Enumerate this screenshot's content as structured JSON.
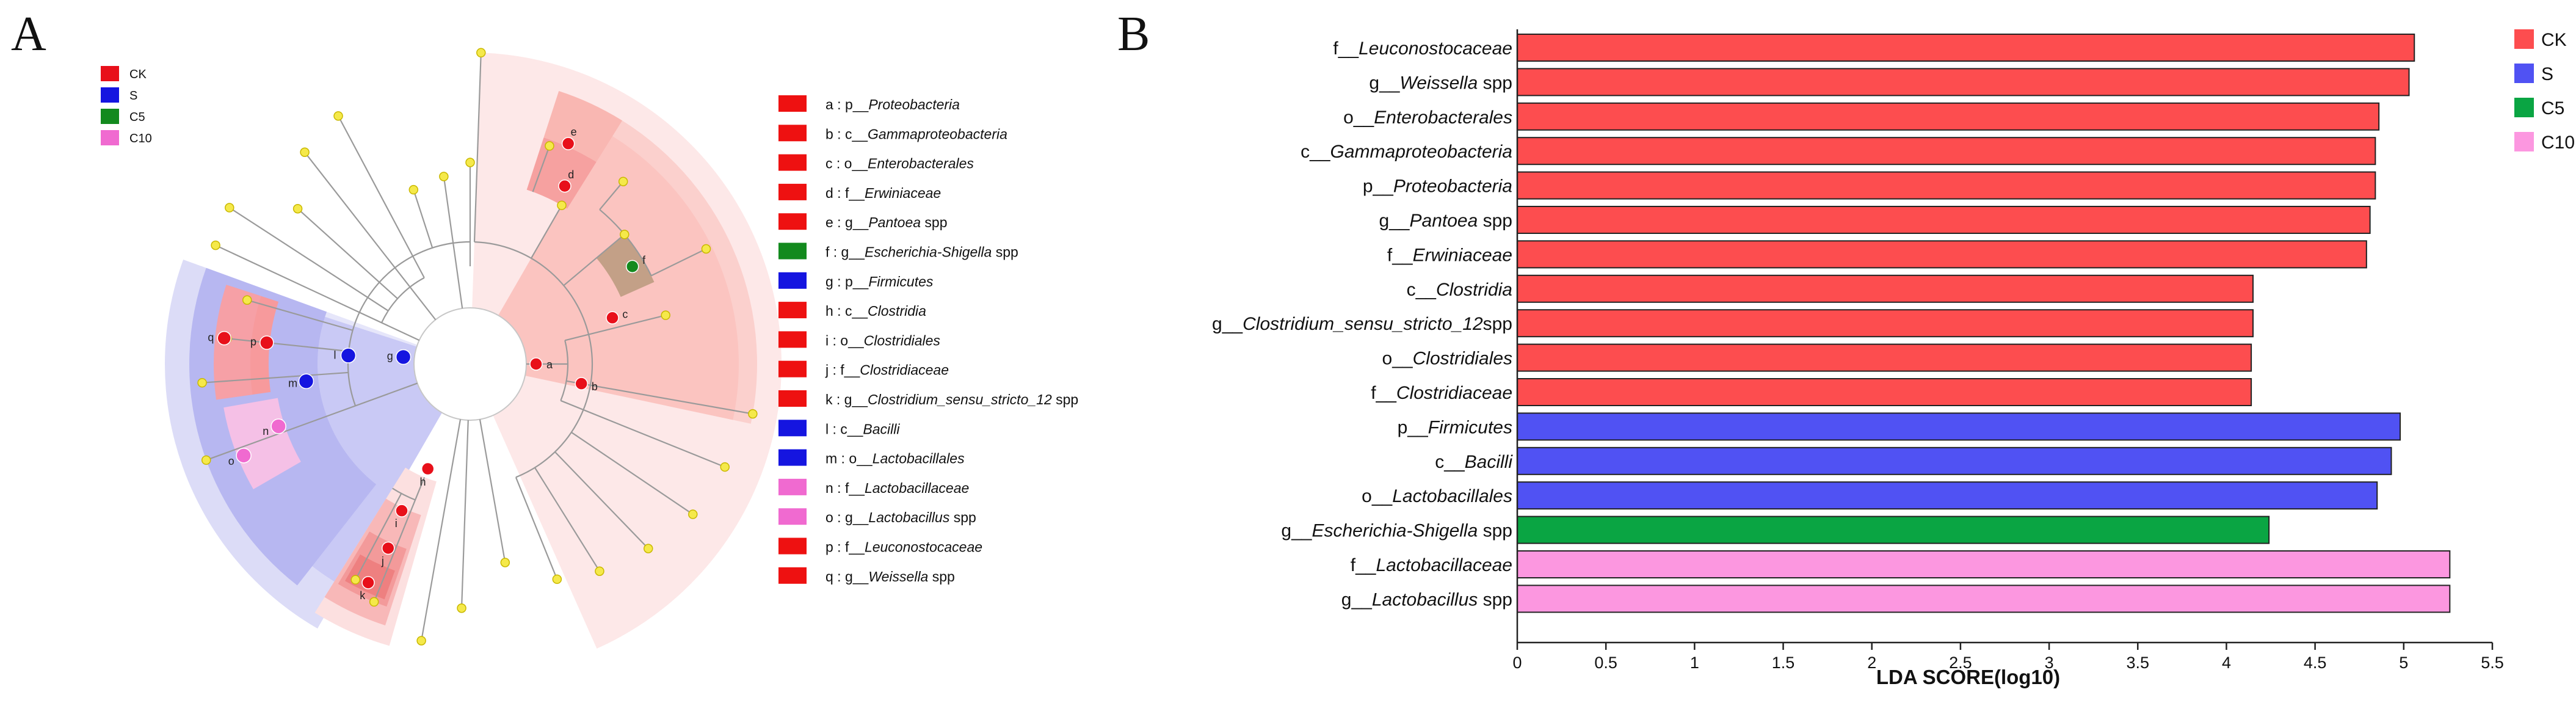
{
  "panel_a": {
    "letter": "A",
    "legend": [
      {
        "label": "CK",
        "color": "#e8101a"
      },
      {
        "label": "S",
        "color": "#1515e0"
      },
      {
        "label": "C5",
        "color": "#138a1e"
      },
      {
        "label": "C10",
        "color": "#f06ad0"
      }
    ],
    "key": [
      {
        "prefix": "a : p__",
        "name": "Proteobacteria",
        "suffix": "",
        "color": "#ee1111"
      },
      {
        "prefix": "b : c__",
        "name": "Gammaproteobacteria",
        "suffix": "",
        "color": "#ee1111"
      },
      {
        "prefix": "c : o__",
        "name": "Enterobacterales",
        "suffix": "",
        "color": "#ee1111"
      },
      {
        "prefix": "d : f__",
        "name": "Erwiniaceae",
        "suffix": "",
        "color": "#ee1111"
      },
      {
        "prefix": "e : g__",
        "name": "Pantoea",
        "suffix": " spp",
        "color": "#ee1111"
      },
      {
        "prefix": "f : g__",
        "name": "Escherichia-Shigella",
        "suffix": " spp",
        "color": "#138a1e"
      },
      {
        "prefix": "g : p__",
        "name": "Firmicutes",
        "suffix": "",
        "color": "#1515e0"
      },
      {
        "prefix": "h : c__",
        "name": "Clostridia",
        "suffix": "",
        "color": "#ee1111"
      },
      {
        "prefix": "i : o__",
        "name": "Clostridiales",
        "suffix": "",
        "color": "#ee1111"
      },
      {
        "prefix": "j : f__",
        "name": "Clostridiaceae",
        "suffix": "",
        "color": "#ee1111"
      },
      {
        "prefix": "k : g__",
        "name": "Clostridium_sensu_stricto_12",
        "suffix": " spp",
        "color": "#ee1111"
      },
      {
        "prefix": "l : c__",
        "name": "Bacilli",
        "suffix": "",
        "color": "#1515e0"
      },
      {
        "prefix": "m : o__",
        "name": "Lactobacillales",
        "suffix": "",
        "color": "#1515e0"
      },
      {
        "prefix": "n : f__",
        "name": "Lactobacillaceae",
        "suffix": "",
        "color": "#f06ad0"
      },
      {
        "prefix": "o : g__",
        "name": "Lactobacillus",
        "suffix": "  spp",
        "color": "#f06ad0"
      },
      {
        "prefix": "p : f__",
        "name": "Leuconostocaceae",
        "suffix": "",
        "color": "#ee1111"
      },
      {
        "prefix": "q : g__",
        "name": "Weissella",
        "suffix": "  spp",
        "color": "#ee1111"
      }
    ],
    "node_labels": [
      "a",
      "b",
      "c",
      "d",
      "e",
      "f",
      "g",
      "h",
      "i",
      "j",
      "k",
      "l",
      "m",
      "n",
      "o",
      "p",
      "q"
    ]
  },
  "panel_b": {
    "letter": "B"
  },
  "chart_data": {
    "type": "bar",
    "orientation": "horizontal",
    "xlabel": "LDA SCORE(log10)",
    "xlim": [
      0,
      5.5
    ],
    "xticks": [
      "0",
      "0.5",
      "1",
      "1.5",
      "2",
      "2.5",
      "3",
      "3.5",
      "4",
      "4.5",
      "5",
      "5.5"
    ],
    "groups": [
      {
        "name": "CK",
        "color": "#fd4d4f"
      },
      {
        "name": "S",
        "color": "#5052f3"
      },
      {
        "name": "C5",
        "color": "#0aa543"
      },
      {
        "name": "C10",
        "color": "#fc97e0"
      }
    ],
    "bars": [
      {
        "prefix": "f__",
        "name": "Leuconostocaceae",
        "suffix": "",
        "value": 5.06,
        "group": "CK"
      },
      {
        "prefix": "g__",
        "name": "Weissella",
        "suffix": " spp",
        "value": 5.03,
        "group": "CK"
      },
      {
        "prefix": "o__",
        "name": "Enterobacterales",
        "suffix": "",
        "value": 4.86,
        "group": "CK"
      },
      {
        "prefix": "c__",
        "name": "Gammaproteobacteria",
        "suffix": "",
        "value": 4.84,
        "group": "CK"
      },
      {
        "prefix": "p__",
        "name": "Proteobacteria",
        "suffix": "",
        "value": 4.84,
        "group": "CK"
      },
      {
        "prefix": "g__",
        "name": "Pantoea",
        "suffix": " spp",
        "value": 4.81,
        "group": "CK"
      },
      {
        "prefix": "f__",
        "name": "Erwiniaceae",
        "suffix": "",
        "value": 4.79,
        "group": "CK"
      },
      {
        "prefix": "c__",
        "name": "Clostridia",
        "suffix": "",
        "value": 4.15,
        "group": "CK"
      },
      {
        "prefix": "g__",
        "name": "Clostridium_sensu_stricto_12",
        "suffix": "spp",
        "value": 4.15,
        "group": "CK"
      },
      {
        "prefix": "o__",
        "name": "Clostridiales",
        "suffix": "",
        "value": 4.14,
        "group": "CK"
      },
      {
        "prefix": "f__",
        "name": "Clostridiaceae",
        "suffix": "",
        "value": 4.14,
        "group": "CK"
      },
      {
        "prefix": "p__",
        "name": "Firmicutes",
        "suffix": "",
        "value": 4.98,
        "group": "S"
      },
      {
        "prefix": "c__",
        "name": "Bacilli",
        "suffix": "",
        "value": 4.93,
        "group": "S"
      },
      {
        "prefix": "o__",
        "name": "Lactobacillales",
        "suffix": "",
        "value": 4.85,
        "group": "S"
      },
      {
        "prefix": "g__",
        "name": "Escherichia-Shigella",
        "suffix": " spp",
        "value": 4.24,
        "group": "C5"
      },
      {
        "prefix": "f__",
        "name": "Lactobacillaceae",
        "suffix": "",
        "value": 5.26,
        "group": "C10"
      },
      {
        "prefix": "g__",
        "name": "Lactobacillus",
        "suffix": " spp",
        "value": 5.26,
        "group": "C10"
      }
    ]
  }
}
